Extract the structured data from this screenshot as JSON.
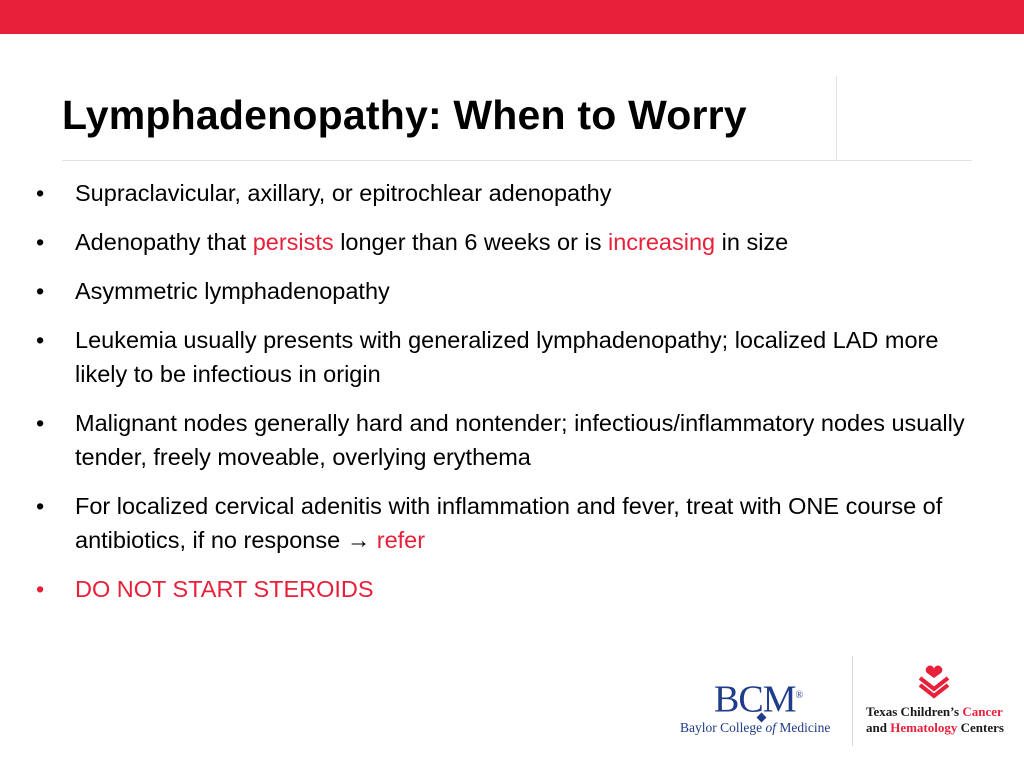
{
  "slide": {
    "title": "Lymphadenopathy: When to Worry",
    "bullet_char": "•",
    "bullets": [
      {
        "parts": [
          "Supraclavicular, axillary, or epitrochlear adenopathy"
        ]
      },
      {
        "parts": [
          "Adenopathy that ",
          "persists",
          " longer than 6 weeks or is ",
          "increasing",
          " in size"
        ]
      },
      {
        "parts": [
          "Asymmetric lymphadenopathy"
        ]
      },
      {
        "parts": [
          "Leukemia usually presents with generalized lymphadenopathy; localized LAD more likely to be infectious in origin"
        ]
      },
      {
        "parts": [
          "Malignant nodes generally hard and nontender; infectious/inflammatory nodes usually tender, freely moveable, overlying erythema"
        ]
      },
      {
        "parts": [
          "For localized cervical adenitis with inflammation and fever, treat with ONE course of antibiotics, if no response ",
          "→",
          " ",
          "refer"
        ]
      },
      {
        "parts": [
          "DO NOT START STEROIDS"
        ]
      }
    ]
  },
  "logos": {
    "bcm_mark": "BCM",
    "bcm_registered": "®",
    "bcm_name_1": "Baylor College ",
    "bcm_name_of": "of",
    "bcm_name_2": " Medicine",
    "tch_line1_a": "Texas Children’s ",
    "tch_line1_b": "Cancer",
    "tch_line2_a": "and ",
    "tch_line2_b": "Hematology",
    "tch_line2_c": " Centers"
  },
  "colors": {
    "accent_red": "#e8203a",
    "bcm_blue": "#1f3c8a"
  }
}
